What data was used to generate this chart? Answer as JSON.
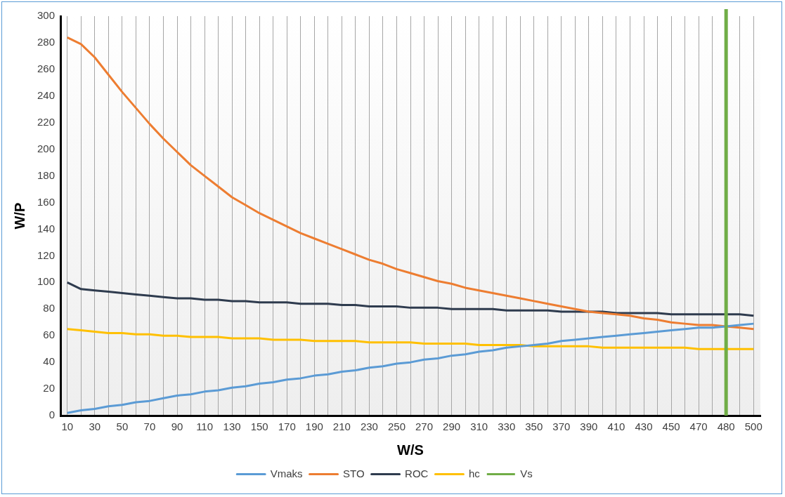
{
  "chart_data": {
    "type": "line",
    "xlabel": "W/S",
    "ylabel": "W/P",
    "categories": [
      "10",
      null,
      "30",
      null,
      "50",
      null,
      "70",
      null,
      "90",
      null,
      "110",
      null,
      "130",
      null,
      "150",
      null,
      "170",
      null,
      "190",
      null,
      "210",
      null,
      "230",
      null,
      "250",
      null,
      "270",
      null,
      "290",
      null,
      "310",
      null,
      "330",
      null,
      "350",
      null,
      "370",
      null,
      "390",
      null,
      "410",
      null,
      "430",
      null,
      "450",
      null,
      "470",
      null,
      "480",
      null,
      "500"
    ],
    "series": [
      {
        "name": "Vmaks",
        "color": "#5b9bd5",
        "values": [
          2,
          4,
          5,
          7,
          8,
          10,
          11,
          13,
          15,
          16,
          18,
          19,
          21,
          22,
          24,
          25,
          27,
          28,
          30,
          31,
          33,
          34,
          36,
          37,
          39,
          40,
          42,
          43,
          45,
          46,
          48,
          49,
          51,
          52,
          53,
          54,
          56,
          57,
          58,
          59,
          60,
          61,
          62,
          63,
          64,
          65,
          66,
          66,
          67,
          68,
          69
        ]
      },
      {
        "name": "STO",
        "color": "#ed7d31",
        "values": [
          284,
          279,
          269,
          256,
          243,
          231,
          219,
          208,
          198,
          188,
          180,
          172,
          164,
          158,
          152,
          147,
          142,
          137,
          133,
          129,
          125,
          121,
          117,
          114,
          110,
          107,
          104,
          101,
          99,
          96,
          94,
          92,
          90,
          88,
          86,
          84,
          82,
          80,
          78,
          77,
          76,
          75,
          73,
          72,
          70,
          69,
          68,
          68,
          67,
          66,
          65
        ]
      },
      {
        "name": "ROC",
        "color": "#2e3b4e",
        "values": [
          100,
          95,
          94,
          93,
          92,
          91,
          90,
          89,
          88,
          88,
          87,
          87,
          86,
          86,
          85,
          85,
          85,
          84,
          84,
          84,
          83,
          83,
          82,
          82,
          82,
          81,
          81,
          81,
          80,
          80,
          80,
          80,
          79,
          79,
          79,
          79,
          78,
          78,
          78,
          78,
          77,
          77,
          77,
          77,
          76,
          76,
          76,
          76,
          76,
          76,
          75
        ]
      },
      {
        "name": "hc",
        "color": "#ffc000",
        "values": [
          65,
          64,
          63,
          62,
          62,
          61,
          61,
          60,
          60,
          59,
          59,
          59,
          58,
          58,
          58,
          57,
          57,
          57,
          56,
          56,
          56,
          56,
          55,
          55,
          55,
          55,
          54,
          54,
          54,
          54,
          53,
          53,
          53,
          53,
          52,
          52,
          52,
          52,
          52,
          51,
          51,
          51,
          51,
          51,
          51,
          51,
          50,
          50,
          50,
          50,
          50
        ]
      }
    ],
    "ref_lines": [
      {
        "axis": "x",
        "value": "480",
        "label": "Vs",
        "color": "#70ad47"
      }
    ],
    "ylim": [
      0,
      300
    ],
    "yticks": [
      0,
      20,
      40,
      60,
      80,
      100,
      120,
      140,
      160,
      180,
      200,
      220,
      240,
      260,
      280,
      300
    ],
    "grid": "x",
    "legend": "bottom",
    "marker": "none",
    "line_style": "solid"
  }
}
